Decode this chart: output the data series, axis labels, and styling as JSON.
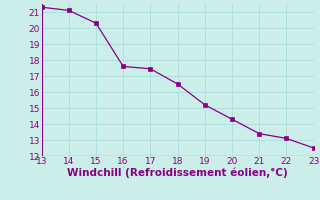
{
  "x": [
    13,
    14,
    15,
    16,
    17,
    18,
    19,
    20,
    21,
    22,
    23
  ],
  "y": [
    21.3,
    21.1,
    20.3,
    17.6,
    17.45,
    16.5,
    15.2,
    14.3,
    13.4,
    13.1,
    12.5
  ],
  "line_color": "#880088",
  "marker": "s",
  "marker_size": 2.5,
  "xlabel": "Windchill (Refroidissement éolien,°C)",
  "xlim": [
    13,
    23
  ],
  "ylim": [
    12,
    21.5
  ],
  "xticks": [
    13,
    14,
    15,
    16,
    17,
    18,
    19,
    20,
    21,
    22,
    23
  ],
  "yticks": [
    12,
    13,
    14,
    15,
    16,
    17,
    18,
    19,
    20,
    21
  ],
  "bg_color": "#cceee8",
  "grid_color": "#aadddd",
  "tick_color": "#880088",
  "label_color": "#880088",
  "tick_fontsize": 6.5,
  "xlabel_fontsize": 7.5
}
